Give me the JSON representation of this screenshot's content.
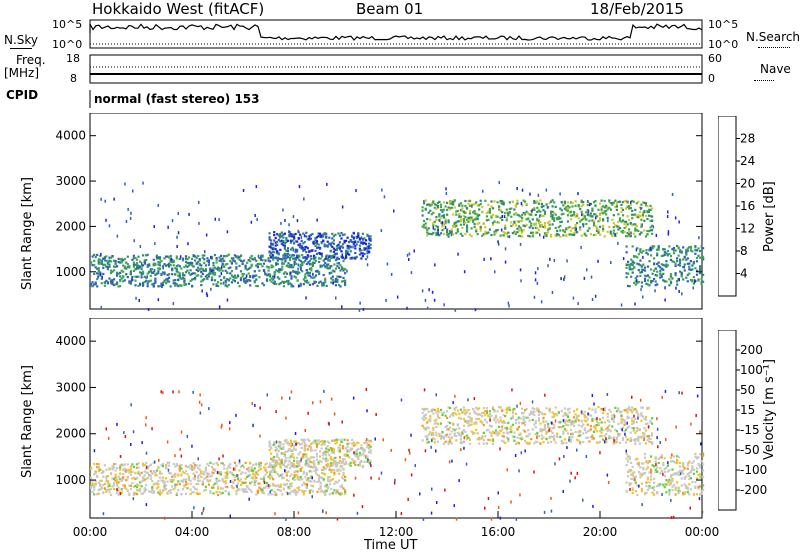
{
  "header": {
    "title": "Hokkaido West (fitACF)",
    "beam": "Beam 01",
    "date": "18/Feb/2015"
  },
  "top_labels": {
    "nsky": "N.Sky",
    "freq": "Freq.",
    "freq_unit": "[MHz]",
    "cpid": "CPID",
    "nsearch": "N.Search",
    "nave": "Nave",
    "nsky_ticks": [
      "10^5",
      "10^0"
    ],
    "nsearch_ticks": [
      "10^5",
      "10^0"
    ],
    "freq_ticks": [
      "18",
      "8"
    ],
    "nave_ticks": [
      "60",
      "0"
    ],
    "cpid_text": "normal (fast stereo) 153"
  },
  "colors": {
    "power_scale": [
      "#1f1fe6",
      "#3060b8",
      "#2e8a74",
      "#3fa84e",
      "#d4c628",
      "#f0b21a",
      "#f07a10",
      "#e04a10",
      "#d91010"
    ],
    "velocity_scale": [
      "#d51313",
      "#ee5a12",
      "#f39a1c",
      "#f4c51e",
      "#c8c8c8",
      "#c8c8c8",
      "#5fcf3a",
      "#2e9a6a",
      "#3060b8",
      "#1f1fe6"
    ]
  },
  "chart_data": [
    {
      "type": "heatmap",
      "name": "Power",
      "ylabel": "Slant Range [km]",
      "xlabel": "",
      "colorbar_label": "Power [dB]",
      "colorbar_ticks": [
        "4",
        "8",
        "12",
        "16",
        "20",
        "24",
        "28"
      ],
      "yticks": [
        "1000",
        "2000",
        "3000",
        "4000"
      ],
      "ylim": [
        180,
        4500
      ],
      "xlim_hours": [
        0,
        24
      ],
      "echo_bands": [
        {
          "from_hours": 0,
          "to_hours": 10,
          "range_km": [
            700,
            1400
          ],
          "typical_db": 10
        },
        {
          "from_hours": 7,
          "to_hours": 11,
          "range_km": [
            1300,
            1900
          ],
          "typical_db": 9
        },
        {
          "from_hours": 13,
          "to_hours": 22,
          "range_km": [
            1800,
            2600
          ],
          "typical_db": 14
        },
        {
          "from_hours": 21,
          "to_hours": 24,
          "range_km": [
            700,
            1600
          ],
          "typical_db": 12
        }
      ]
    },
    {
      "type": "heatmap",
      "name": "Velocity",
      "ylabel": "Slant Range [km]",
      "xlabel": "Time UT",
      "colorbar_label": "Velocity [m s⁻¹]",
      "colorbar_ticks": [
        "-200",
        "-100",
        "-50",
        "-15",
        "15",
        "50",
        "100",
        "200"
      ],
      "yticks": [
        "1000",
        "2000",
        "3000",
        "4000"
      ],
      "xticks": [
        "00:00",
        "04:00",
        "08:00",
        "12:00",
        "16:00",
        "20:00",
        "00:00"
      ],
      "ylim": [
        180,
        4500
      ],
      "xlim_hours": [
        0,
        24
      ]
    }
  ]
}
